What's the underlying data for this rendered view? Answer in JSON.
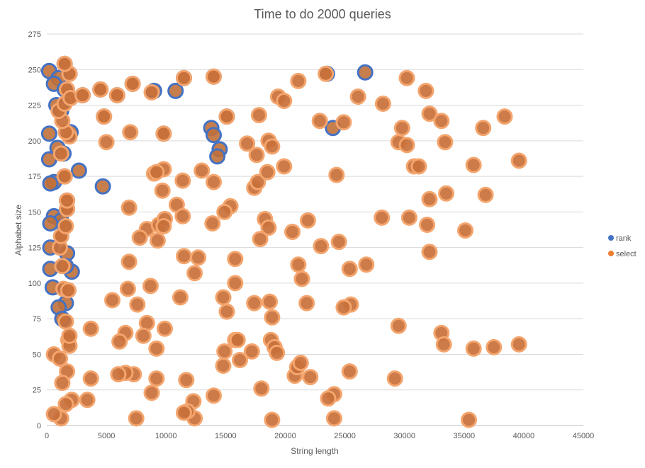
{
  "chart_data": {
    "type": "scatter",
    "bubble": true,
    "title": "Time to do 2000 queries",
    "xlabel": "String length",
    "ylabel": "Alphabet size",
    "xlim": [
      0,
      45000
    ],
    "ylim": [
      0,
      275
    ],
    "xticks": [
      0,
      5000,
      10000,
      15000,
      20000,
      25000,
      30000,
      35000,
      40000,
      45000
    ],
    "yticks": [
      0,
      25,
      50,
      75,
      100,
      125,
      150,
      175,
      200,
      225,
      250,
      275
    ],
    "grid": true,
    "legend_position": "right",
    "series": [
      {
        "name": "rank",
        "color": "#4472c4",
        "points": [
          [
            1500,
            254
          ],
          [
            1900,
            247
          ],
          [
            200,
            249
          ],
          [
            1000,
            244
          ],
          [
            600,
            240
          ],
          [
            1500,
            236
          ],
          [
            2000,
            230
          ],
          [
            3000,
            232
          ],
          [
            4500,
            236
          ],
          [
            5900,
            232
          ],
          [
            800,
            225
          ],
          [
            1200,
            221
          ],
          [
            2000,
            206
          ],
          [
            4800,
            217
          ],
          [
            9800,
            205
          ],
          [
            200,
            205
          ],
          [
            900,
            195
          ],
          [
            1400,
            191
          ],
          [
            200,
            187
          ],
          [
            2700,
            179
          ],
          [
            1500,
            175
          ],
          [
            600,
            171
          ],
          [
            300,
            170
          ],
          [
            4700,
            168
          ],
          [
            1700,
            158
          ],
          [
            1700,
            152
          ],
          [
            600,
            147
          ],
          [
            1200,
            144
          ],
          [
            300,
            142
          ],
          [
            1500,
            140
          ],
          [
            1200,
            133
          ],
          [
            1700,
            121
          ],
          [
            300,
            125
          ],
          [
            2100,
            108
          ],
          [
            1600,
            112
          ],
          [
            300,
            110
          ],
          [
            500,
            97
          ],
          [
            1800,
            95
          ],
          [
            1600,
            86
          ],
          [
            1000,
            83
          ],
          [
            1300,
            75
          ],
          [
            7200,
            240
          ],
          [
            9000,
            235
          ],
          [
            10800,
            235
          ],
          [
            11500,
            244
          ],
          [
            14000,
            245
          ],
          [
            13800,
            209
          ],
          [
            14000,
            204
          ],
          [
            14500,
            194
          ],
          [
            14300,
            189
          ],
          [
            15100,
            217
          ],
          [
            24000,
            209
          ],
          [
            26700,
            248
          ],
          [
            23500,
            247
          ]
        ]
      },
      {
        "name": "select",
        "color": "#ed7d31",
        "points": [
          [
            7200,
            240
          ],
          [
            8800,
            234
          ],
          [
            11500,
            244
          ],
          [
            14000,
            245
          ],
          [
            15100,
            217
          ],
          [
            17800,
            218
          ],
          [
            16800,
            198
          ],
          [
            17600,
            190
          ],
          [
            18600,
            200
          ],
          [
            18900,
            196
          ],
          [
            19400,
            231
          ],
          [
            19900,
            228
          ],
          [
            21100,
            242
          ],
          [
            23400,
            247
          ],
          [
            22900,
            214
          ],
          [
            24900,
            213
          ],
          [
            24300,
            176
          ],
          [
            26100,
            231
          ],
          [
            28200,
            226
          ],
          [
            30200,
            244
          ],
          [
            31800,
            235
          ],
          [
            32100,
            219
          ],
          [
            33100,
            214
          ],
          [
            29800,
            209
          ],
          [
            29500,
            199
          ],
          [
            30200,
            197
          ],
          [
            30800,
            182
          ],
          [
            31200,
            182
          ],
          [
            33400,
            199
          ],
          [
            35800,
            183
          ],
          [
            36600,
            209
          ],
          [
            38400,
            217
          ],
          [
            39600,
            186
          ],
          [
            33500,
            163
          ],
          [
            36800,
            162
          ],
          [
            32100,
            159
          ],
          [
            30400,
            146
          ],
          [
            28100,
            146
          ],
          [
            35100,
            137
          ],
          [
            31900,
            141
          ],
          [
            32100,
            122
          ],
          [
            26800,
            113
          ],
          [
            25400,
            110
          ],
          [
            24500,
            129
          ],
          [
            25500,
            85
          ],
          [
            24900,
            83
          ],
          [
            21100,
            113
          ],
          [
            21400,
            103
          ],
          [
            20600,
            136
          ],
          [
            21900,
            144
          ],
          [
            23000,
            126
          ],
          [
            21800,
            86
          ],
          [
            17400,
            167
          ],
          [
            17700,
            171
          ],
          [
            18500,
            178
          ],
          [
            19900,
            182
          ],
          [
            15400,
            154
          ],
          [
            14900,
            150
          ],
          [
            14000,
            171
          ],
          [
            13000,
            179
          ],
          [
            11400,
            172
          ],
          [
            10900,
            155
          ],
          [
            11400,
            147
          ],
          [
            9800,
            180
          ],
          [
            9700,
            165
          ],
          [
            9000,
            177
          ],
          [
            9200,
            178
          ],
          [
            7000,
            206
          ],
          [
            6900,
            153
          ],
          [
            8400,
            138
          ],
          [
            9400,
            141
          ],
          [
            9900,
            145
          ],
          [
            9800,
            140
          ],
          [
            9300,
            130
          ],
          [
            7800,
            132
          ],
          [
            6900,
            115
          ],
          [
            11500,
            119
          ],
          [
            12700,
            118
          ],
          [
            12400,
            107
          ],
          [
            13900,
            142
          ],
          [
            15800,
            117
          ],
          [
            18300,
            145
          ],
          [
            18600,
            139
          ],
          [
            17900,
            131
          ],
          [
            18700,
            87
          ],
          [
            18900,
            76
          ],
          [
            17400,
            86
          ],
          [
            15800,
            100
          ],
          [
            14800,
            90
          ],
          [
            15100,
            80
          ],
          [
            11200,
            90
          ],
          [
            7600,
            85
          ],
          [
            6800,
            96
          ],
          [
            8700,
            98
          ],
          [
            5500,
            88
          ],
          [
            6600,
            65
          ],
          [
            8400,
            72
          ],
          [
            8100,
            63
          ],
          [
            9200,
            54
          ],
          [
            9900,
            68
          ],
          [
            3700,
            68
          ],
          [
            6100,
            59
          ],
          [
            15800,
            60
          ],
          [
            16000,
            60
          ],
          [
            16200,
            46
          ],
          [
            14900,
            52
          ],
          [
            14800,
            42
          ],
          [
            17200,
            52
          ],
          [
            18800,
            60
          ],
          [
            19100,
            55
          ],
          [
            19300,
            51
          ],
          [
            20800,
            35
          ],
          [
            21000,
            41
          ],
          [
            21300,
            44
          ],
          [
            22100,
            34
          ],
          [
            24100,
            22
          ],
          [
            23600,
            19
          ],
          [
            25400,
            38
          ],
          [
            24100,
            5
          ],
          [
            29500,
            70
          ],
          [
            29200,
            33
          ],
          [
            33100,
            65
          ],
          [
            33300,
            57
          ],
          [
            35800,
            54
          ],
          [
            37500,
            55
          ],
          [
            39600,
            57
          ],
          [
            35400,
            4
          ],
          [
            14000,
            21
          ],
          [
            11700,
            32
          ],
          [
            12300,
            17
          ],
          [
            12400,
            5
          ],
          [
            11800,
            10
          ],
          [
            11500,
            9
          ],
          [
            9200,
            33
          ],
          [
            8800,
            23
          ],
          [
            7500,
            5
          ],
          [
            7300,
            36
          ],
          [
            6600,
            37
          ],
          [
            6000,
            36
          ],
          [
            3400,
            18
          ],
          [
            3700,
            33
          ],
          [
            18000,
            26
          ],
          [
            18900,
            4
          ],
          [
            2100,
            18
          ],
          [
            1800,
            60
          ],
          [
            1900,
            56
          ],
          [
            1900,
            63
          ],
          [
            1700,
            38
          ],
          [
            1300,
            30
          ],
          [
            1600,
            15
          ],
          [
            1200,
            5
          ],
          [
            600,
            8
          ],
          [
            600,
            50
          ],
          [
            1100,
            47
          ],
          [
            1600,
            73
          ],
          [
            1400,
            96
          ],
          [
            1800,
            95
          ],
          [
            1300,
            112
          ],
          [
            1100,
            125
          ],
          [
            1200,
            133
          ],
          [
            1600,
            140
          ],
          [
            1700,
            152
          ],
          [
            1700,
            158
          ],
          [
            1500,
            175
          ],
          [
            1200,
            191
          ],
          [
            1900,
            203
          ],
          [
            1600,
            206
          ],
          [
            1300,
            214
          ],
          [
            1000,
            221
          ],
          [
            1500,
            226
          ],
          [
            1700,
            236
          ],
          [
            1900,
            247
          ],
          [
            1500,
            254
          ],
          [
            2000,
            230
          ],
          [
            3000,
            232
          ],
          [
            4500,
            236
          ],
          [
            5900,
            232
          ],
          [
            4800,
            217
          ],
          [
            9800,
            205
          ],
          [
            5000,
            199
          ]
        ]
      }
    ]
  }
}
